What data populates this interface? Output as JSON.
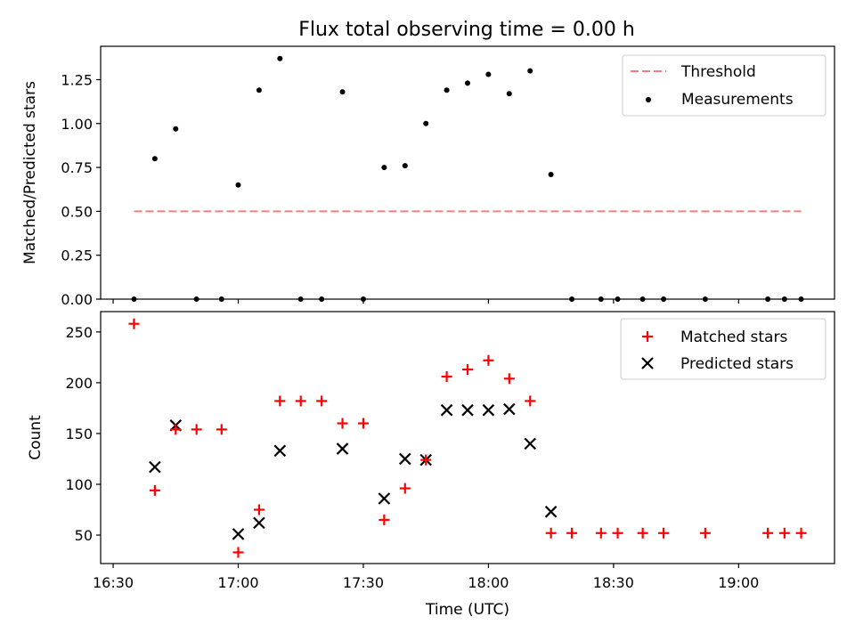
{
  "figure_title": "Flux total observing time = 0.00 h",
  "chart_data": [
    {
      "type": "scatter",
      "panel": "top",
      "ylabel": "Matched/Predicted stars",
      "xlabel": "",
      "ylim": [
        0,
        1.44
      ],
      "yticks": [
        0.0,
        0.25,
        0.5,
        0.75,
        1.0,
        1.25
      ],
      "ytick_labels": [
        "0.00",
        "0.25",
        "0.50",
        "0.75",
        "1.00",
        "1.25"
      ],
      "legend_position": "upper right",
      "threshold": {
        "name": "Threshold",
        "value": 0.5,
        "x_start": "16:35",
        "x_end": "19:15",
        "color": "#f08080"
      },
      "series": [
        {
          "name": "Measurements",
          "color": "#000000",
          "x": [
            "16:35",
            "16:40",
            "16:45",
            "16:50",
            "16:56",
            "17:00",
            "17:05",
            "17:10",
            "17:15",
            "17:20",
            "17:25",
            "17:30",
            "17:35",
            "17:40",
            "17:45",
            "17:50",
            "17:55",
            "18:00",
            "18:05",
            "18:10",
            "18:15",
            "18:20",
            "18:27",
            "18:31",
            "18:37",
            "18:42",
            "18:52",
            "19:07",
            "19:11",
            "19:15"
          ],
          "values": [
            0.0,
            0.8,
            0.97,
            0.0,
            0.0,
            0.65,
            1.19,
            1.37,
            0.0,
            0.0,
            1.18,
            0.0,
            0.75,
            0.76,
            1.0,
            1.19,
            1.23,
            1.28,
            1.17,
            1.3,
            0.71,
            0.0,
            0.0,
            0.0,
            0.0,
            0.0,
            0.0,
            0.0,
            0.0,
            0.0
          ]
        }
      ]
    },
    {
      "type": "scatter",
      "panel": "bottom",
      "ylabel": "Count",
      "xlabel": "Time (UTC)",
      "ylim": [
        22,
        270
      ],
      "yticks": [
        50,
        100,
        150,
        200,
        250
      ],
      "ytick_labels": [
        "50",
        "100",
        "150",
        "200",
        "250"
      ],
      "xticks": [
        "16:30",
        "17:00",
        "17:30",
        "18:00",
        "18:30",
        "19:00"
      ],
      "xlim": [
        "16:27",
        "19:23"
      ],
      "legend_position": "upper right",
      "series": [
        {
          "name": "Matched stars",
          "marker": "plus",
          "color": "#ff0000",
          "x": [
            "16:35",
            "16:40",
            "16:45",
            "16:50",
            "16:56",
            "17:00",
            "17:05",
            "17:10",
            "17:15",
            "17:20",
            "17:25",
            "17:30",
            "17:35",
            "17:40",
            "17:45",
            "17:50",
            "17:55",
            "18:00",
            "18:05",
            "18:10",
            "18:15",
            "18:20",
            "18:27",
            "18:31",
            "18:37",
            "18:42",
            "18:52",
            "19:07",
            "19:11",
            "19:15"
          ],
          "values": [
            258,
            94,
            154,
            154,
            154,
            33,
            75,
            182,
            182,
            182,
            160,
            160,
            65,
            96,
            124,
            206,
            213,
            222,
            204,
            182,
            52,
            52,
            52,
            52,
            52,
            52,
            52,
            52,
            52,
            52
          ]
        },
        {
          "name": "Predicted stars",
          "marker": "x",
          "color": "#000000",
          "x": [
            "16:40",
            "16:45",
            "17:00",
            "17:05",
            "17:10",
            "17:25",
            "17:35",
            "17:40",
            "17:45",
            "17:50",
            "17:55",
            "18:00",
            "18:05",
            "18:10",
            "18:15"
          ],
          "values": [
            117,
            158,
            51,
            62,
            133,
            135,
            86,
            125,
            124,
            173,
            173,
            173,
            174,
            140,
            73
          ]
        }
      ]
    }
  ]
}
